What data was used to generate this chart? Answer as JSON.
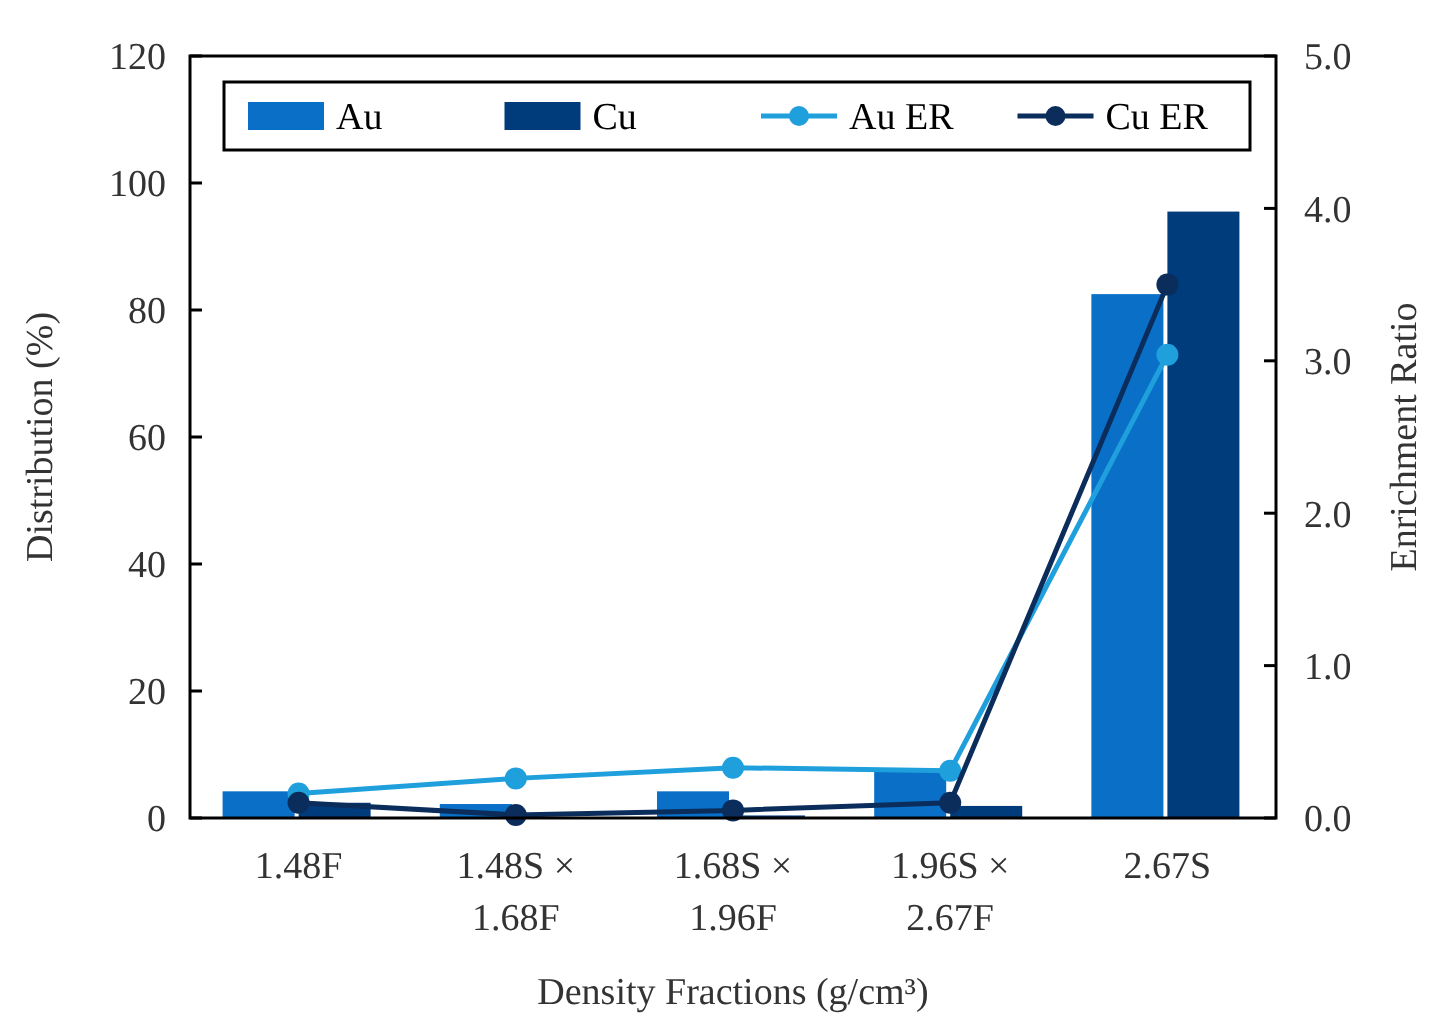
{
  "chart_data": {
    "type": "bar",
    "xlabel": "Density Fractions (g/cm³)",
    "ylabel": "Distribution (%)",
    "y2label": "Enrichment Ratio",
    "categories": [
      "1.48F",
      "1.48S ×\n1.68F",
      "1.68S ×\n1.96F",
      "1.96S ×\n2.67F",
      "2.67S"
    ],
    "series": [
      {
        "name": "Au",
        "color": "#0a6fc7",
        "values": [
          4.2,
          2.2,
          4.2,
          7.4,
          82.5
        ]
      },
      {
        "name": "Cu",
        "color": "#003b7c",
        "values": [
          2.4,
          null,
          0.4,
          1.9,
          95.5
        ]
      },
      {
        "name": "Au ER",
        "type": "line",
        "axis": "y2",
        "color": "#1fa0dd",
        "values": [
          0.16,
          0.26,
          0.33,
          0.31,
          3.04
        ]
      },
      {
        "name": "Cu ER",
        "type": "line",
        "axis": "y2",
        "color": "#0b2d5c",
        "values": [
          0.1,
          0.02,
          0.05,
          0.1,
          3.5
        ]
      }
    ],
    "ylim": [
      0,
      120
    ],
    "yticks": [
      0,
      20,
      40,
      60,
      80,
      100,
      120
    ],
    "y2lim": [
      0,
      5
    ],
    "y2ticks": [
      {
        "value": 0,
        "label": "0.0"
      },
      {
        "value": 1,
        "label": "1.0"
      },
      {
        "value": 2,
        "label": "2.0"
      },
      {
        "value": 3,
        "label": "3.0"
      },
      {
        "value": 4,
        "label": "4.0"
      },
      {
        "value": 5,
        "label": "5.0"
      }
    ],
    "legend": "top",
    "marker": "circle",
    "grid": false
  }
}
